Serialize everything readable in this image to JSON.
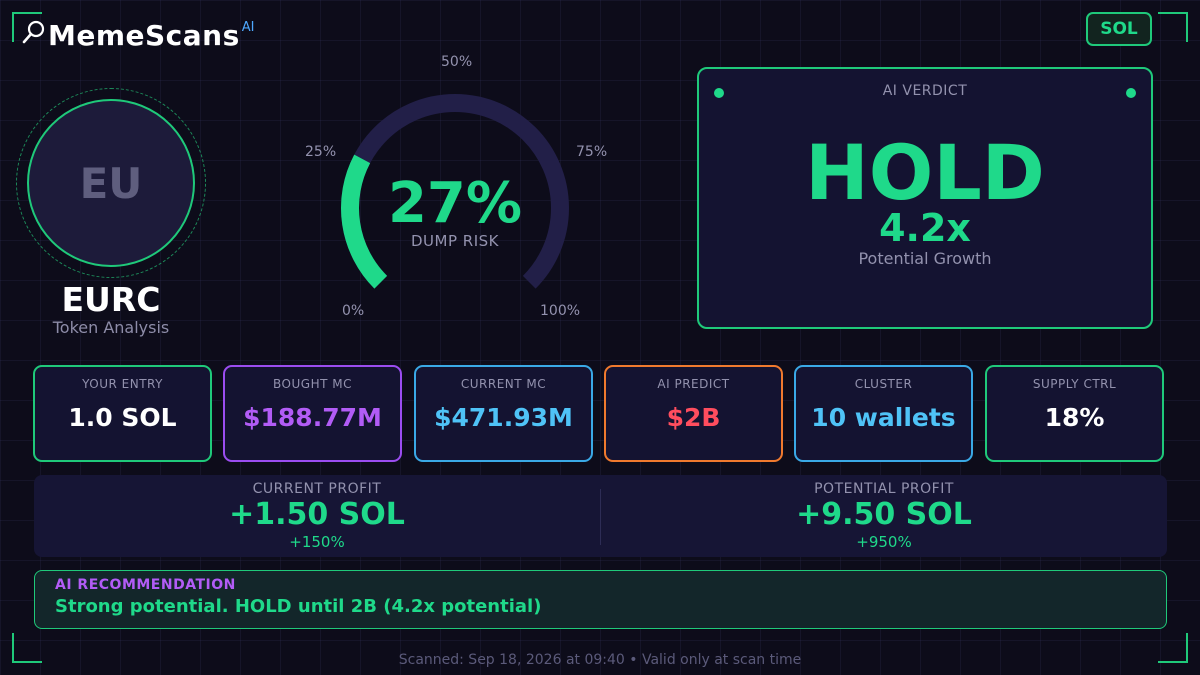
{
  "brand": {
    "name": "MemeScans",
    "sup": "AI",
    "icon": "magnifier-icon"
  },
  "chain": {
    "label": "SOL"
  },
  "token": {
    "avatar_text": "EU",
    "symbol": "EURC",
    "subtitle": "Token Analysis"
  },
  "gauge": {
    "value_text": "27%",
    "caption": "DUMP RISK",
    "risk_fraction": 0.27,
    "ticks": {
      "t0": "0%",
      "t25": "25%",
      "t50": "50%",
      "t75": "75%",
      "t100": "100%"
    }
  },
  "verdict": {
    "label": "AI VERDICT",
    "value": "HOLD",
    "multiplier": "4.2x",
    "subtitle": "Potential Growth"
  },
  "stats": [
    {
      "label": "YOUR ENTRY",
      "value": "1.0 SOL",
      "color": "#ffffff",
      "border": "#1fc97a"
    },
    {
      "label": "BOUGHT MC",
      "value": "$188.77M",
      "color": "#b25cf6",
      "border": "#9b4df0"
    },
    {
      "label": "CURRENT MC",
      "value": "$471.93M",
      "color": "#4fc3f7",
      "border": "#3aa9e6"
    },
    {
      "label": "AI PREDICT",
      "value": "$2B",
      "color": "#ff4d5e",
      "border": "#f07a2e"
    },
    {
      "label": "CLUSTER",
      "value": "10 wallets",
      "color": "#4fc3f7",
      "border": "#3aa9e6"
    },
    {
      "label": "SUPPLY CTRL",
      "value": "18%",
      "color": "#ffffff",
      "border": "#1fc97a"
    }
  ],
  "profit": {
    "current": {
      "label": "CURRENT PROFIT",
      "value": "+1.50 SOL",
      "pct": "+150%"
    },
    "potential": {
      "label": "POTENTIAL PROFIT",
      "value": "+9.50 SOL",
      "pct": "+950%"
    }
  },
  "recommendation": {
    "label": "AI RECOMMENDATION",
    "text": "Strong potential. HOLD until 2B (4.2x potential)"
  },
  "footer": {
    "text": "Scanned: Sep 18, 2026 at 09:40  •  Valid only at scan time"
  },
  "colors": {
    "accent": "#1fd98a",
    "purple": "#b25cf6",
    "blue": "#4fc3f7",
    "red": "#ff4d5e",
    "orange": "#f07a2e"
  }
}
